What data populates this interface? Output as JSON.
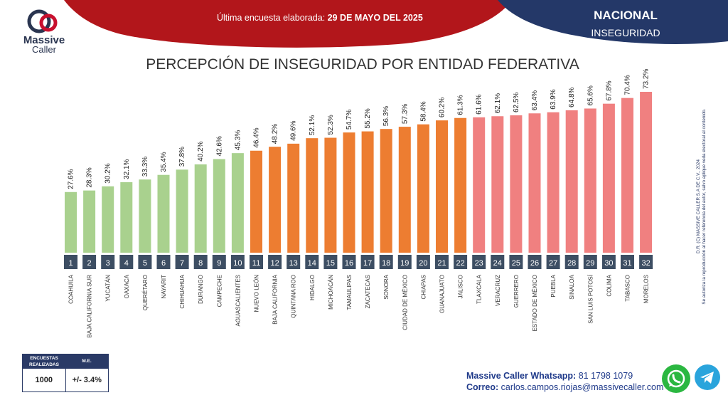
{
  "header": {
    "survey_prefix": "Última encuesta elaborada:",
    "survey_date": "29 DE MAYO DEL 2025",
    "scope": "NACIONAL",
    "topic": "INSEGURIDAD",
    "logo_line1": "Massive",
    "logo_line2": "Caller"
  },
  "colors": {
    "red_band": "#b2161b",
    "navy_band": "#243868",
    "green": "#a9d18e",
    "orange": "#ed7d31",
    "salmon": "#f08080",
    "badge": "#3d4e63"
  },
  "chart_data": {
    "type": "bar",
    "title": "PERCEPCIÓN DE INSEGURIDAD POR ENTIDAD FEDERATIVA",
    "categories": [
      "COAHUILA",
      "BAJA CALIFORNIA SUR",
      "YUCATÁN",
      "OAXACA",
      "QUERÉTARO",
      "NAYARIT",
      "CHIHUAHUA",
      "DURANGO",
      "CAMPECHE",
      "AGUASCALIENTES",
      "NUEVO LEÓN",
      "BAJA CALIFORNIA",
      "QUINTANA ROO",
      "HIDALGO",
      "MICHOACÁN",
      "TAMAULIPAS",
      "ZACATECAS",
      "SONORA",
      "CIUDAD DE MÉXICO",
      "CHIAPAS",
      "GUANAJUATO",
      "JALISCO",
      "TLAXCALA",
      "VERACRUZ",
      "GUERRERO",
      "ESTADO DE MÉXICO",
      "PUEBLA",
      "SINALOA",
      "SAN LUIS POTOSÍ",
      "COLIMA",
      "TABASCO",
      "MORELOS"
    ],
    "values": [
      27.6,
      28.3,
      30.2,
      32.1,
      33.3,
      35.4,
      37.8,
      40.2,
      42.6,
      45.3,
      46.4,
      48.2,
      49.6,
      52.1,
      52.3,
      54.7,
      55.2,
      56.3,
      57.3,
      58.4,
      60.2,
      61.3,
      61.6,
      62.1,
      62.5,
      63.4,
      63.9,
      64.8,
      65.6,
      67.8,
      70.4,
      73.2
    ],
    "labels": [
      "27.6%",
      "28.3%",
      "30.2%",
      "32.1%",
      "33.3%",
      "35.4%",
      "37.8%",
      "40.2%",
      "42.6%",
      "45.3%",
      "46.4%",
      "48.2%",
      "49.6%",
      "52.1%",
      "52.3%",
      "54.7%",
      "55.2%",
      "56.3%",
      "57.3%",
      "58.4%",
      "60.2%",
      "61.3%",
      "61.6%",
      "62.1%",
      "62.5%",
      "63.4%",
      "63.9%",
      "64.8%",
      "65.6%",
      "67.8%",
      "70.4%",
      "73.2%"
    ],
    "ranks": [
      "1",
      "2",
      "3",
      "4",
      "5",
      "6",
      "7",
      "8",
      "9",
      "10",
      "11",
      "12",
      "13",
      "14",
      "15",
      "16",
      "17",
      "18",
      "19",
      "20",
      "21",
      "22",
      "23",
      "24",
      "25",
      "26",
      "27",
      "28",
      "29",
      "30",
      "31",
      "32"
    ],
    "color_groups": [
      "green",
      "green",
      "green",
      "green",
      "green",
      "green",
      "green",
      "green",
      "green",
      "green",
      "orange",
      "orange",
      "orange",
      "orange",
      "orange",
      "orange",
      "orange",
      "orange",
      "orange",
      "orange",
      "orange",
      "orange",
      "salmon",
      "salmon",
      "salmon",
      "salmon",
      "salmon",
      "salmon",
      "salmon",
      "salmon",
      "salmon",
      "salmon"
    ],
    "ylim": [
      0,
      80
    ],
    "grid": false
  },
  "survey_box": {
    "col1_header_l1": "ENCUESTAS",
    "col1_header_l2": "REALIZADAS",
    "col2_header": "M.E.",
    "encuestas": "1000",
    "margin": "+/- 3.4%"
  },
  "contact": {
    "whatsapp_label": "Massive Caller Whatsapp:",
    "whatsapp_number": "81 1798 1079",
    "email_label": "Correo:",
    "email": "carlos.campos.riojas@massivecaller.com",
    "whatsapp_icon": "whatsapp-icon",
    "telegram_icon": "telegram-icon"
  },
  "legal": {
    "line1": "D.R. (C) MASSIVE CALLER S.A DE C.V., 2024",
    "line2": "Se autoriza la reproducción al hacer referencia del autor, salvo aplique veda electoral al contenido."
  }
}
